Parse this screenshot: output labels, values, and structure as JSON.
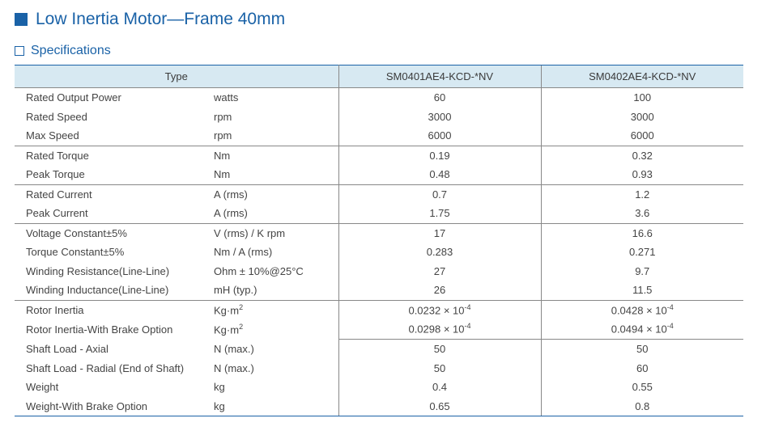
{
  "title": "Low Inertia Motor—Frame 40mm",
  "subhead": "Specifications",
  "colors": {
    "brand": "#1a62a7",
    "header_bg": "#d7e9f2",
    "rule": "#888888",
    "text": "#3a3a3a"
  },
  "headers": {
    "type": "Type",
    "model1": "SM0401AE4-KCD-*NV",
    "model2": "SM0402AE4-KCD-*NV"
  },
  "rows": [
    {
      "param": "Rated Output Power",
      "unit": "watts",
      "v1": "60",
      "v2": "100"
    },
    {
      "param": "Rated Speed",
      "unit": "rpm",
      "v1": "3000",
      "v2": "3000"
    },
    {
      "param": "Max Speed",
      "unit": "rpm",
      "v1": "6000",
      "v2": "6000"
    },
    {
      "param": "Rated Torque",
      "unit": "Nm",
      "v1": "0.19",
      "v2": "0.32"
    },
    {
      "param": "Peak Torque",
      "unit": "Nm",
      "v1": "0.48",
      "v2": "0.93"
    },
    {
      "param": "Rated Current",
      "unit": "A (rms)",
      "v1": "0.7",
      "v2": "1.2"
    },
    {
      "param": "Peak Current",
      "unit": "A (rms)",
      "v1": "1.75",
      "v2": "3.6"
    },
    {
      "param": "Voltage Constant±5%",
      "unit": "V (rms) / K rpm",
      "v1": "17",
      "v2": "16.6"
    },
    {
      "param": "Torque Constant±5%",
      "unit": "Nm / A (rms)",
      "v1": "0.283",
      "v2": "0.271"
    },
    {
      "param": "Winding Resistance(Line-Line)",
      "unit": "Ohm  ± 10%@25°C",
      "v1": "27",
      "v2": "9.7"
    },
    {
      "param": "Winding Inductance(Line-Line)",
      "unit": "mH (typ.)",
      "v1": "26",
      "v2": "11.5"
    },
    {
      "param": "Rotor Inertia",
      "unit_html": "Kg·m<span class=\"sup\">2</span>",
      "v1_html": "0.0232 × 10<span class=\"sup\">-4</span>",
      "v2_html": "0.0428 × 10<span class=\"sup\">-4</span>"
    },
    {
      "param": "Rotor Inertia-With Brake Option",
      "unit_html": "Kg·m<span class=\"sup\">2</span>",
      "v1_html": "0.0298 × 10<span class=\"sup\">-4</span>",
      "v2_html": "0.0494 × 10<span class=\"sup\">-4</span>"
    },
    {
      "param": "Shaft Load - Axial",
      "unit": "N (max.)",
      "v1": "50",
      "v2": "50"
    },
    {
      "param": "Shaft Load - Radial (End of Shaft)",
      "unit": "N (max.)",
      "v1": "50",
      "v2": "60"
    },
    {
      "param": "Weight",
      "unit": "kg",
      "v1": "0.4",
      "v2": "0.55"
    },
    {
      "param": "Weight-With Brake Option",
      "unit": "kg",
      "v1": "0.65",
      "v2": "0.8"
    }
  ]
}
